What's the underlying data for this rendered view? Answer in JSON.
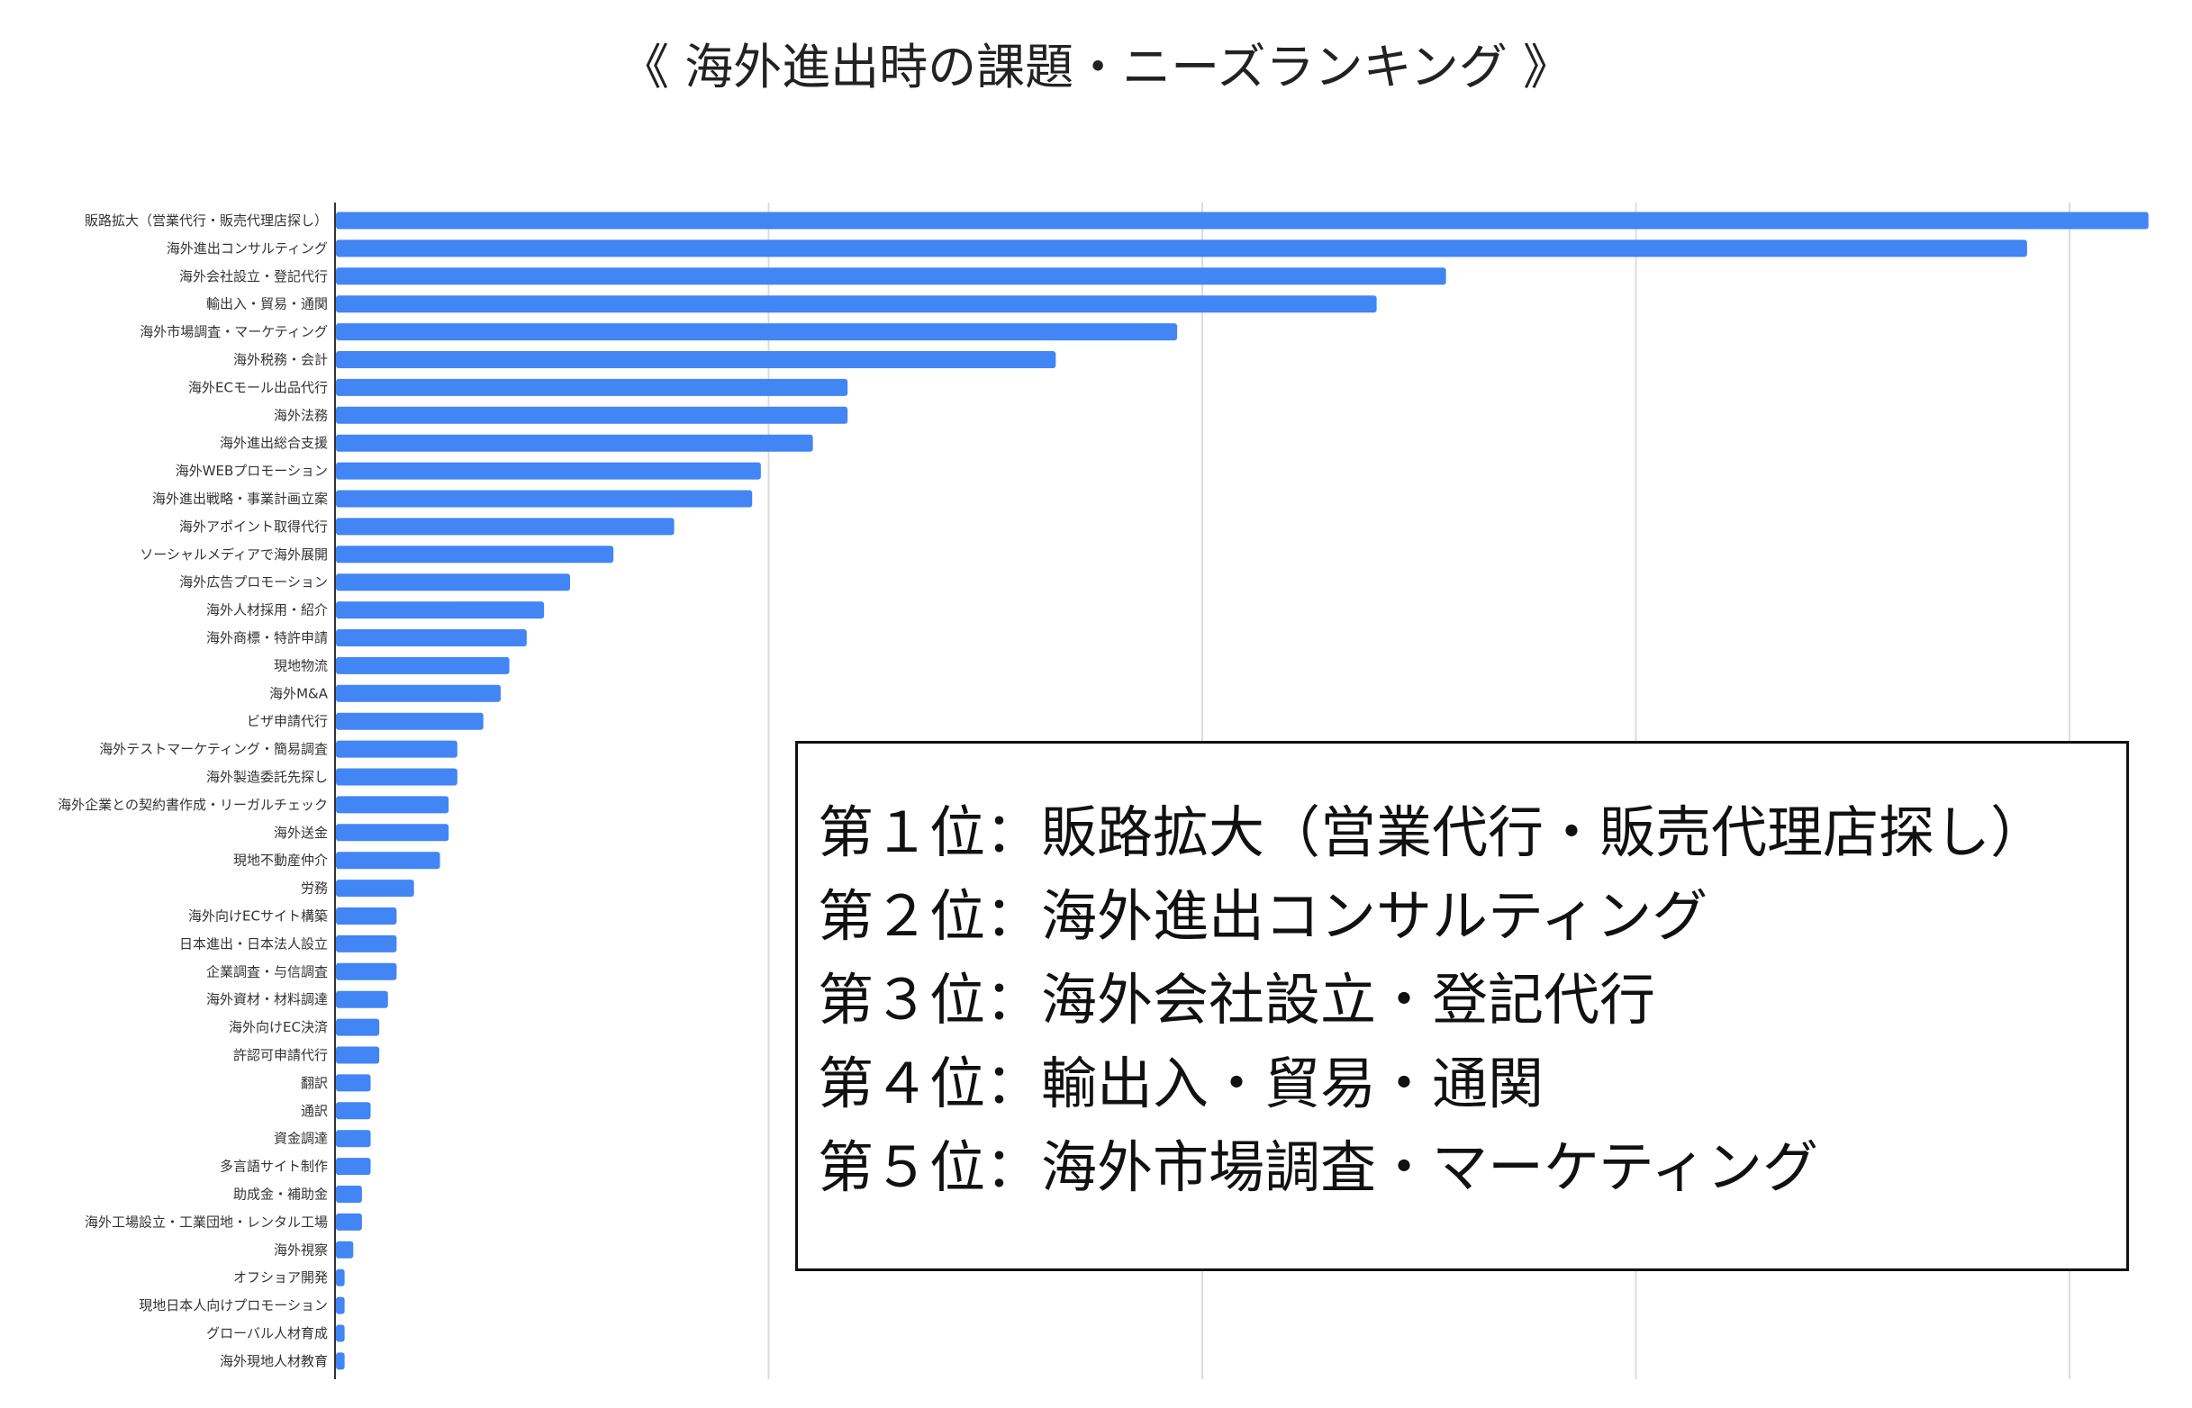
{
  "chart_data": {
    "type": "bar",
    "orientation": "horizontal",
    "title": "《 海外進出時の課題・ニーズランキング 》",
    "xlabel": "",
    "ylabel": "",
    "xlim": [
      0,
      210
    ],
    "grid": true,
    "grid_step": 50,
    "bar_color": "#4285F4",
    "categories": [
      "販路拡大（営業代行・販売代理店探し）",
      "海外進出コンサルティング",
      "海外会社設立・登記代行",
      "輸出入・貿易・通関",
      "海外市場調査・マーケティング",
      "海外税務・会計",
      "海外ECモール出品代行",
      "海外法務",
      "海外進出総合支援",
      "海外WEBプロモーション",
      "海外進出戦略・事業計画立案",
      "海外アポイント取得代行",
      "ソーシャルメディアで海外展開",
      "海外広告プロモーション",
      "海外人材採用・紹介",
      "海外商標・特許申請",
      "現地物流",
      "海外M&A",
      "ビザ申請代行",
      "海外テストマーケティング・簡易調査",
      "海外製造委託先探し",
      "海外企業との契約書作成・リーガルチェック",
      "海外送金",
      "現地不動産仲介",
      "労務",
      "海外向けECサイト構築",
      "日本進出・日本法人設立",
      "企業調査・与信調査",
      "海外資材・材料調達",
      "海外向けEC決済",
      "許認可申請代行",
      "翻訳",
      "通訳",
      "資金調達",
      "多言語サイト制作",
      "助成金・補助金",
      "海外工場設立・工業団地・レンタル工場",
      "海外視察",
      "オフショア開発",
      "現地日本人向けプロモーション",
      "グローバル人材育成",
      "海外現地人材教育"
    ],
    "values": [
      209,
      195,
      128,
      120,
      97,
      83,
      59,
      59,
      55,
      49,
      48,
      39,
      32,
      27,
      24,
      22,
      20,
      19,
      17,
      14,
      14,
      13,
      13,
      12,
      9,
      7,
      7,
      7,
      6,
      5,
      5,
      4,
      4,
      4,
      4,
      3,
      3,
      2,
      1,
      1,
      1,
      1
    ]
  },
  "ranking_box": {
    "lines": [
      "第１位：販路拡大（営業代行・販売代理店探し）",
      "第２位：海外進出コンサルティング",
      "第３位：海外会社設立・登記代行",
      "第４位：輸出入・貿易・通関",
      "第５位：海外市場調査・マーケティング"
    ]
  }
}
